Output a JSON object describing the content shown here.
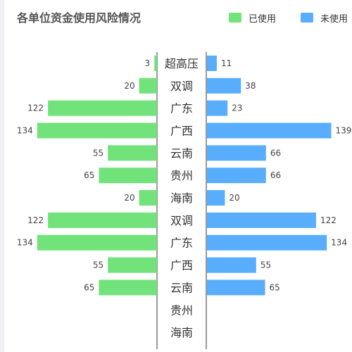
{
  "title": "各单位资金使用风险情况",
  "chart_data": {
    "type": "bar",
    "orientation": "horizontal-butterfly",
    "categories": [
      "超高压",
      "双调",
      "广东",
      "广西",
      "云南",
      "贵州",
      "海南",
      "双调",
      "广东",
      "广西",
      "云南",
      "贵州",
      "海南"
    ],
    "series": [
      {
        "name": "已使用",
        "color": "#72e27a",
        "side": "left",
        "values": [
          3,
          20,
          122,
          134,
          55,
          65,
          20,
          122,
          134,
          55,
          65,
          null,
          null
        ]
      },
      {
        "name": "未使用",
        "color": "#58aefc",
        "side": "right",
        "values": [
          11,
          38,
          23,
          139,
          66,
          66,
          20,
          122,
          134,
          55,
          65,
          null,
          null
        ]
      }
    ],
    "legend_position": "top-right",
    "grid": false
  }
}
